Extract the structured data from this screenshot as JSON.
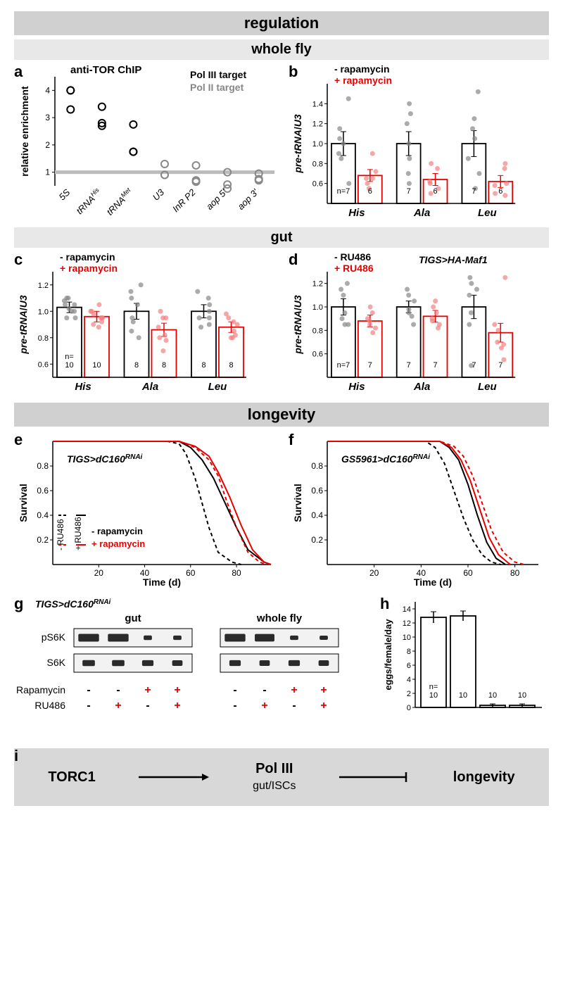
{
  "headers": {
    "regulation": "regulation",
    "wholefly": "whole fly",
    "gut": "gut",
    "longevity": "longevity"
  },
  "panel_a": {
    "label": "a",
    "title": "anti-TOR ChIP",
    "legend1": "Pol III target",
    "legend2": "Pol II  target",
    "ylabel": "relative enrichment",
    "ylim": [
      0.5,
      4.5
    ],
    "yticks": [
      1,
      2,
      3,
      4
    ],
    "categories": [
      "5S",
      "tRNAHis",
      "tRNAMet",
      "U3",
      "InR P2",
      "aop 5'",
      "aop 3'"
    ],
    "points": [
      {
        "x": 0,
        "y": [
          4.0,
          4.0,
          3.3
        ],
        "color": "#000000"
      },
      {
        "x": 1,
        "y": [
          3.4,
          2.8,
          2.7
        ],
        "color": "#000000"
      },
      {
        "x": 2,
        "y": [
          2.75,
          1.75,
          1.75
        ],
        "color": "#000000"
      },
      {
        "x": 3,
        "y": [
          1.3,
          0.9,
          0.9
        ],
        "color": "#888888"
      },
      {
        "x": 4,
        "y": [
          1.25,
          0.7,
          0.65
        ],
        "color": "#888888"
      },
      {
        "x": 5,
        "y": [
          1.0,
          0.55,
          0.4
        ],
        "color": "#888888"
      },
      {
        "x": 6,
        "y": [
          0.95,
          0.75,
          0.7
        ],
        "color": "#888888"
      }
    ],
    "ref_line": 1.0
  },
  "panel_b": {
    "label": "b",
    "legend_minus": "- rapamycin",
    "legend_plus": "+ rapamycin",
    "ylabel": "pre-tRNA/U3",
    "ylim": [
      0.4,
      1.6
    ],
    "yticks": [
      0.6,
      0.8,
      1.0,
      1.2,
      1.4
    ],
    "groups": [
      "His",
      "Ala",
      "Leu"
    ],
    "bars": [
      {
        "group": 0,
        "val": 1.0,
        "err": 0.12,
        "color": "#000000",
        "n": "n=7",
        "points": [
          1.0,
          0.9,
          1.05,
          0.85,
          1.15,
          1.45,
          0.6
        ]
      },
      {
        "group": 0,
        "val": 0.68,
        "err": 0.06,
        "color": "#e60000",
        "n": "6",
        "points": [
          0.72,
          0.65,
          0.9,
          0.55,
          0.65,
          0.6
        ]
      },
      {
        "group": 1,
        "val": 1.0,
        "err": 0.12,
        "color": "#000000",
        "n": "7",
        "points": [
          1.0,
          0.85,
          1.4,
          0.7,
          1.2,
          1.3,
          0.6
        ]
      },
      {
        "group": 1,
        "val": 0.64,
        "err": 0.06,
        "color": "#e60000",
        "n": "6",
        "points": [
          0.75,
          0.6,
          0.8,
          0.55,
          0.62,
          0.5
        ]
      },
      {
        "group": 2,
        "val": 1.0,
        "err": 0.13,
        "color": "#000000",
        "n": "7",
        "points": [
          1.05,
          0.85,
          1.52,
          0.7,
          1.15,
          1.25,
          0.55
        ]
      },
      {
        "group": 2,
        "val": 0.62,
        "err": 0.06,
        "color": "#e60000",
        "n": "6",
        "points": [
          0.75,
          0.58,
          0.8,
          0.5,
          0.6,
          0.48
        ]
      }
    ]
  },
  "panel_c": {
    "label": "c",
    "legend_minus": "- rapamycin",
    "legend_plus": "+ rapamycin",
    "ylabel": "pre-tRNA/U3",
    "ylim": [
      0.5,
      1.3
    ],
    "yticks": [
      0.6,
      0.8,
      1.0,
      1.2
    ],
    "groups": [
      "His",
      "Ala",
      "Leu"
    ],
    "bars": [
      {
        "group": 0,
        "val": 1.03,
        "err": 0.04,
        "color": "#000000",
        "n": "n=\n10",
        "points": [
          1.0,
          1.05,
          0.95,
          1.1,
          1.02,
          1.08,
          0.95,
          1.0,
          1.05,
          1.1
        ]
      },
      {
        "group": 0,
        "val": 0.96,
        "err": 0.04,
        "color": "#e60000",
        "n": "10",
        "points": [
          1.05,
          0.92,
          0.95,
          1.0,
          0.88,
          0.9,
          0.95,
          1.0,
          0.98,
          0.95
        ]
      },
      {
        "group": 1,
        "val": 1.0,
        "err": 0.06,
        "color": "#000000",
        "n": "8",
        "points": [
          1.1,
          0.92,
          1.2,
          0.85,
          1.05,
          0.95,
          1.15,
          0.8
        ]
      },
      {
        "group": 1,
        "val": 0.86,
        "err": 0.05,
        "color": "#e60000",
        "n": "8",
        "points": [
          0.95,
          0.8,
          1.0,
          0.78,
          0.88,
          0.7,
          0.95,
          0.82
        ]
      },
      {
        "group": 2,
        "val": 1.0,
        "err": 0.05,
        "color": "#000000",
        "n": "8",
        "points": [
          1.05,
          0.9,
          1.15,
          0.88,
          1.0,
          0.95,
          1.1,
          0.95
        ]
      },
      {
        "group": 2,
        "val": 0.88,
        "err": 0.04,
        "color": "#e60000",
        "n": "8",
        "points": [
          0.95,
          0.82,
          0.98,
          0.8,
          0.9,
          0.85,
          0.92,
          0.8
        ]
      }
    ]
  },
  "panel_d": {
    "label": "d",
    "title": "TIGS>HA-Maf1",
    "legend_minus": "- RU486",
    "legend_plus": "+ RU486",
    "ylabel": "pre-tRNA/U3",
    "ylim": [
      0.4,
      1.3
    ],
    "yticks": [
      0.6,
      0.8,
      1.0,
      1.2
    ],
    "groups": [
      "His",
      "Ala",
      "Leu"
    ],
    "bars": [
      {
        "group": 0,
        "val": 1.0,
        "err": 0.07,
        "color": "#000000",
        "n": "n=7",
        "points": [
          1.1,
          0.85,
          1.15,
          0.9,
          1.2,
          0.95,
          0.85
        ]
      },
      {
        "group": 0,
        "val": 0.88,
        "err": 0.05,
        "color": "#e60000",
        "n": "7",
        "points": [
          1.0,
          0.82,
          0.95,
          0.78,
          0.9,
          0.85,
          0.88
        ]
      },
      {
        "group": 1,
        "val": 1.0,
        "err": 0.05,
        "color": "#000000",
        "n": "7",
        "points": [
          1.05,
          0.92,
          1.1,
          0.95,
          1.15,
          0.85,
          0.98
        ]
      },
      {
        "group": 1,
        "val": 0.92,
        "err": 0.05,
        "color": "#e60000",
        "n": "7",
        "points": [
          1.05,
          0.85,
          1.0,
          0.82,
          0.95,
          0.88,
          0.9
        ]
      },
      {
        "group": 2,
        "val": 1.0,
        "err": 0.1,
        "color": "#000000",
        "n": "7",
        "points": [
          1.25,
          0.5,
          1.2,
          0.95,
          1.15,
          0.85,
          1.1
        ]
      },
      {
        "group": 2,
        "val": 0.78,
        "err": 0.08,
        "color": "#e60000",
        "n": "7",
        "points": [
          1.25,
          0.55,
          0.85,
          0.7,
          0.8,
          0.65,
          0.68
        ]
      }
    ]
  },
  "panel_e": {
    "label": "e",
    "title": "TIGS>dC160RNAi",
    "xlabel": "Time (d)",
    "ylabel": "Survival",
    "xlim": [
      0,
      95
    ],
    "ylim": [
      0,
      1.0
    ],
    "xticks": [
      20,
      40,
      60,
      80
    ],
    "yticks": [
      0.2,
      0.4,
      0.6,
      0.8
    ],
    "legend": {
      "ru_minus": "- RU486",
      "ru_plus": "+ RU486",
      "rapa_minus": "- rapamycin",
      "rapa_plus": "+ rapamycin"
    },
    "curves": [
      {
        "color": "#000000",
        "dash": true,
        "pts": [
          [
            0,
            1
          ],
          [
            50,
            1
          ],
          [
            55,
            0.98
          ],
          [
            58,
            0.9
          ],
          [
            62,
            0.7
          ],
          [
            65,
            0.5
          ],
          [
            68,
            0.3
          ],
          [
            72,
            0.1
          ],
          [
            78,
            0.02
          ],
          [
            82,
            0
          ]
        ]
      },
      {
        "color": "#000000",
        "dash": false,
        "pts": [
          [
            0,
            1
          ],
          [
            55,
            1
          ],
          [
            60,
            0.95
          ],
          [
            65,
            0.85
          ],
          [
            70,
            0.7
          ],
          [
            75,
            0.5
          ],
          [
            80,
            0.3
          ],
          [
            85,
            0.12
          ],
          [
            92,
            0.02
          ],
          [
            95,
            0
          ]
        ]
      },
      {
        "color": "#e60000",
        "dash": true,
        "pts": [
          [
            0,
            1
          ],
          [
            55,
            1
          ],
          [
            62,
            0.95
          ],
          [
            68,
            0.85
          ],
          [
            72,
            0.72
          ],
          [
            76,
            0.5
          ],
          [
            80,
            0.3
          ],
          [
            85,
            0.1
          ],
          [
            90,
            0.02
          ],
          [
            93,
            0
          ]
        ]
      },
      {
        "color": "#e60000",
        "dash": false,
        "pts": [
          [
            0,
            1
          ],
          [
            55,
            1
          ],
          [
            62,
            0.96
          ],
          [
            68,
            0.88
          ],
          [
            72,
            0.75
          ],
          [
            77,
            0.55
          ],
          [
            82,
            0.32
          ],
          [
            87,
            0.12
          ],
          [
            92,
            0.02
          ],
          [
            95,
            0
          ]
        ]
      }
    ]
  },
  "panel_f": {
    "label": "f",
    "title": "GS5961>dC160RNAi",
    "xlabel": "Time (d)",
    "ylabel": "Survival",
    "xlim": [
      0,
      90
    ],
    "ylim": [
      0,
      1.0
    ],
    "xticks": [
      20,
      40,
      60,
      80
    ],
    "yticks": [
      0.2,
      0.4,
      0.6,
      0.8
    ],
    "curves": [
      {
        "color": "#000000",
        "dash": true,
        "pts": [
          [
            0,
            1
          ],
          [
            42,
            1
          ],
          [
            46,
            0.95
          ],
          [
            50,
            0.82
          ],
          [
            54,
            0.6
          ],
          [
            58,
            0.38
          ],
          [
            62,
            0.2
          ],
          [
            66,
            0.08
          ],
          [
            70,
            0.02
          ],
          [
            74,
            0
          ]
        ]
      },
      {
        "color": "#000000",
        "dash": false,
        "pts": [
          [
            0,
            1
          ],
          [
            48,
            1
          ],
          [
            52,
            0.95
          ],
          [
            56,
            0.85
          ],
          [
            60,
            0.65
          ],
          [
            64,
            0.4
          ],
          [
            68,
            0.18
          ],
          [
            72,
            0.05
          ],
          [
            76,
            0
          ]
        ]
      },
      {
        "color": "#e60000",
        "dash": true,
        "pts": [
          [
            0,
            1
          ],
          [
            48,
            1
          ],
          [
            54,
            0.96
          ],
          [
            58,
            0.88
          ],
          [
            62,
            0.72
          ],
          [
            66,
            0.5
          ],
          [
            70,
            0.28
          ],
          [
            75,
            0.1
          ],
          [
            80,
            0.02
          ],
          [
            84,
            0
          ]
        ]
      },
      {
        "color": "#e60000",
        "dash": false,
        "pts": [
          [
            0,
            1
          ],
          [
            48,
            1
          ],
          [
            53,
            0.95
          ],
          [
            57,
            0.85
          ],
          [
            61,
            0.68
          ],
          [
            65,
            0.45
          ],
          [
            69,
            0.22
          ],
          [
            73,
            0.08
          ],
          [
            78,
            0
          ]
        ]
      }
    ]
  },
  "panel_g": {
    "label": "g",
    "title": "TIGS>dC160RNAi",
    "region1": "gut",
    "region2": "whole fly",
    "row1": "pS6K",
    "row2": "S6K",
    "cond1": "Rapamycin",
    "cond2": "RU486",
    "conditions": [
      [
        "-",
        "-",
        "+",
        "+",
        "-",
        "-",
        "+",
        "+"
      ],
      [
        "-",
        "+",
        "-",
        "+",
        "-",
        "+",
        "-",
        "+"
      ]
    ],
    "plus_color": "#e60000",
    "bands": {
      "ps6k_gut": [
        1.0,
        1.0,
        0.25,
        0.2
      ],
      "s6k_gut": [
        0.6,
        0.6,
        0.55,
        0.5
      ],
      "ps6k_whole": [
        1.0,
        0.95,
        0.2,
        0.15
      ],
      "s6k_whole": [
        0.55,
        0.5,
        0.55,
        0.5
      ]
    }
  },
  "panel_h": {
    "label": "h",
    "ylabel": "eggs/female/day",
    "ylim": [
      0,
      15
    ],
    "yticks": [
      0,
      2,
      4,
      6,
      8,
      10,
      12,
      14
    ],
    "bars": [
      {
        "val": 12.8,
        "err": 0.8,
        "n": "n=\n10"
      },
      {
        "val": 13.0,
        "err": 0.7,
        "n": "10"
      },
      {
        "val": 0.3,
        "err": 0.2,
        "n": "10"
      },
      {
        "val": 0.3,
        "err": 0.2,
        "n": "10"
      }
    ]
  },
  "panel_i": {
    "label": "i",
    "node1": "TORC1",
    "node2": "Pol III",
    "node2sub": "gut/ISCs",
    "node3": "longevity"
  }
}
